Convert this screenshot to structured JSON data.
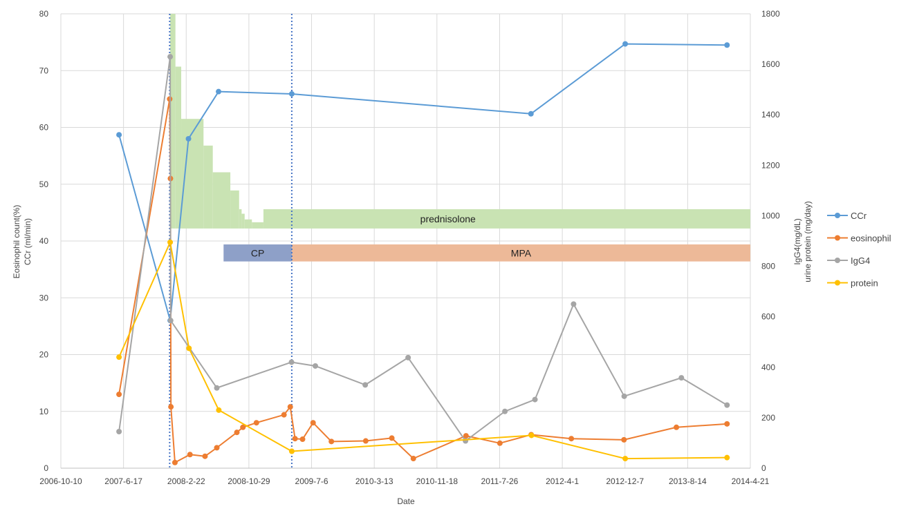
{
  "chart_data": {
    "type": "line",
    "xlabel": "Date",
    "ylabel_left": [
      "Eosinophil count(%)",
      "CCr (ml/min)"
    ],
    "ylabel_right": [
      "IgG4(mg/dL)",
      "urine protein (mg/day)"
    ],
    "x_ticks": [
      "2006-10-10",
      "2007-6-17",
      "2008-2-22",
      "2008-10-29",
      "2009-7-6",
      "2010-3-13",
      "2010-11-18",
      "2011-7-26",
      "2012-4-1",
      "2012-12-7",
      "2013-8-14",
      "2014-4-21"
    ],
    "x_range": [
      "2006-10-10",
      "2014-4-21"
    ],
    "y_left_range": [
      0,
      80
    ],
    "y_left_ticks": [
      "0",
      "10",
      "20",
      "30",
      "40",
      "50",
      "60",
      "70",
      "80"
    ],
    "y_right_range": [
      0,
      1800
    ],
    "y_right_ticks": [
      "0",
      "200",
      "400",
      "600",
      "800",
      "1000",
      "1200",
      "1400",
      "1600",
      "1800"
    ],
    "grid": true,
    "legend_position": "right",
    "vertical_markers": [
      "2007-12-18",
      "2009-4-18"
    ],
    "series": [
      {
        "name": "CCr",
        "axis": "left",
        "color": "#5B9BD5",
        "points": [
          {
            "x": "2007-5-30",
            "y": 58.7
          },
          {
            "x": "2007-12-20",
            "y": 26
          },
          {
            "x": "2008-3-2",
            "y": 58
          },
          {
            "x": "2008-6-30",
            "y": 66.3
          },
          {
            "x": "2009-4-18",
            "y": 65.9
          },
          {
            "x": "2011-11-28",
            "y": 62.4
          },
          {
            "x": "2012-12-8",
            "y": 74.7
          },
          {
            "x": "2014-1-18",
            "y": 74.5
          }
        ]
      },
      {
        "name": "eosinophil",
        "axis": "left",
        "color": "#ED7D31",
        "points": [
          {
            "x": "2007-5-30",
            "y": 13
          },
          {
            "x": "2007-12-18",
            "y": 65
          },
          {
            "x": "2007-12-21",
            "y": 51
          },
          {
            "x": "2007-12-23",
            "y": 10.8
          },
          {
            "x": "2008-1-8",
            "y": 1
          },
          {
            "x": "2008-3-8",
            "y": 2.4
          },
          {
            "x": "2008-5-7",
            "y": 2.1
          },
          {
            "x": "2008-6-23",
            "y": 3.6
          },
          {
            "x": "2008-9-11",
            "y": 6.3
          },
          {
            "x": "2008-10-5",
            "y": 7.2
          },
          {
            "x": "2008-11-28",
            "y": 8
          },
          {
            "x": "2009-3-18",
            "y": 9.4
          },
          {
            "x": "2009-4-12",
            "y": 10.8
          },
          {
            "x": "2009-5-1",
            "y": 5.2
          },
          {
            "x": "2009-5-31",
            "y": 5.1
          },
          {
            "x": "2009-7-12",
            "y": 8
          },
          {
            "x": "2009-9-23",
            "y": 4.7
          },
          {
            "x": "2010-2-7",
            "y": 4.8
          },
          {
            "x": "2010-5-22",
            "y": 5.3
          },
          {
            "x": "2010-8-16",
            "y": 1.7
          },
          {
            "x": "2011-3-14",
            "y": 5.7
          },
          {
            "x": "2011-7-27",
            "y": 4.4
          },
          {
            "x": "2011-11-29",
            "y": 5.9
          },
          {
            "x": "2012-5-7",
            "y": 5.2
          },
          {
            "x": "2012-12-3",
            "y": 5
          },
          {
            "x": "2013-6-30",
            "y": 7.2
          },
          {
            "x": "2014-1-18",
            "y": 7.8
          }
        ]
      },
      {
        "name": "IgG4",
        "axis": "right",
        "color": "#A5A5A5",
        "points": [
          {
            "x": "2007-5-30",
            "y": 145
          },
          {
            "x": "2007-12-20",
            "y": 1630
          },
          {
            "x": "2007-12-22",
            "y": 585
          },
          {
            "x": "2008-6-23",
            "y": 318
          },
          {
            "x": "2009-4-17",
            "y": 420
          },
          {
            "x": "2009-7-21",
            "y": 405
          },
          {
            "x": "2010-2-5",
            "y": 330
          },
          {
            "x": "2010-7-26",
            "y": 438
          },
          {
            "x": "2011-3-12",
            "y": 108
          },
          {
            "x": "2011-8-16",
            "y": 225
          },
          {
            "x": "2011-12-14",
            "y": 272
          },
          {
            "x": "2012-5-16",
            "y": 650
          },
          {
            "x": "2012-12-4",
            "y": 285
          },
          {
            "x": "2013-7-20",
            "y": 358
          },
          {
            "x": "2014-1-18",
            "y": 250
          }
        ]
      },
      {
        "name": "protein",
        "axis": "right",
        "color": "#FFC000",
        "points": [
          {
            "x": "2007-5-30",
            "y": 440
          },
          {
            "x": "2007-12-20",
            "y": 895
          },
          {
            "x": "2008-3-4",
            "y": 475
          },
          {
            "x": "2008-7-1",
            "y": 230
          },
          {
            "x": "2009-4-18",
            "y": 67
          },
          {
            "x": "2011-11-30",
            "y": 130
          },
          {
            "x": "2012-12-8",
            "y": 38
          },
          {
            "x": "2014-1-18",
            "y": 42
          }
        ]
      }
    ],
    "treatments": [
      {
        "label": "prednisolone",
        "color": "#C9E3B3",
        "label_at": "2011-1-1",
        "steps": [
          {
            "from": "2007-12-20",
            "to": "2008-1-10",
            "top": 80
          },
          {
            "from": "2008-1-10",
            "to": "2008-2-2",
            "top": 70.7
          },
          {
            "from": "2008-2-2",
            "to": "2008-5-1",
            "top": 61.5
          },
          {
            "from": "2008-5-1",
            "to": "2008-6-7",
            "top": 56.8
          },
          {
            "from": "2008-6-7",
            "to": "2008-8-16",
            "top": 52.1
          },
          {
            "from": "2008-8-16",
            "to": "2008-9-20",
            "top": 48.9
          },
          {
            "from": "2008-9-20",
            "to": "2008-9-30",
            "top": 45.6
          },
          {
            "from": "2008-9-30",
            "to": "2008-10-12",
            "top": 44.8
          },
          {
            "from": "2008-10-12",
            "to": "2008-11-10",
            "top": 43.8
          },
          {
            "from": "2008-11-10",
            "to": "2008-12-26",
            "top": 43.3
          },
          {
            "from": "2008-12-26",
            "to": "2014-4-21",
            "top": 45.6
          }
        ],
        "bottom": 42.2
      },
      {
        "label": "CP",
        "color": "#8EA0C8",
        "from": "2008-7-20",
        "to": "2009-4-18",
        "y_top": 39.4,
        "y_bottom": 36.4
      },
      {
        "label": "MPA",
        "color": "#EDB998",
        "from": "2009-4-18",
        "to": "2014-4-21",
        "y_top": 39.4,
        "y_bottom": 36.4
      }
    ]
  }
}
